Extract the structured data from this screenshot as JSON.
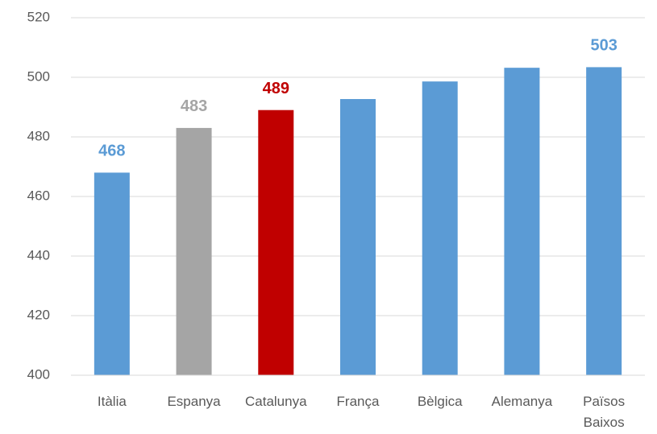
{
  "chart_data": {
    "type": "bar",
    "categories": [
      "Itàlia",
      "Espanya",
      "Catalunya",
      "França",
      "Bèlgica",
      "Alemanya",
      "Països Baixos"
    ],
    "values": [
      468,
      483,
      489,
      492.7,
      498.6,
      503.2,
      503.4
    ],
    "value_labels": [
      "468",
      "483",
      "489",
      null,
      null,
      null,
      "503"
    ],
    "colors": [
      "#5b9bd5",
      "#a5a5a5",
      "#c00000",
      "#5b9bd5",
      "#5b9bd5",
      "#5b9bd5",
      "#5b9bd5"
    ],
    "ylim": [
      400,
      520
    ],
    "yticks": [
      400,
      420,
      440,
      460,
      480,
      500,
      520
    ],
    "grid": true
  }
}
